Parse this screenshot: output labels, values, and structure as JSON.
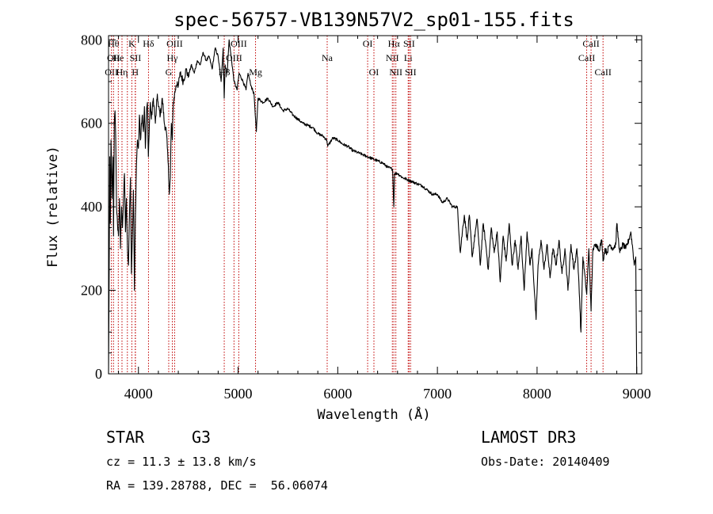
{
  "chart_data": {
    "type": "line",
    "title": "spec-56757-VB139N57V2_sp01-155.fits",
    "xlabel": "Wavelength (Å)",
    "ylabel": "Flux (relative)",
    "xlim": [
      3700,
      9050
    ],
    "ylim": [
      0,
      810
    ],
    "xticks": [
      4000,
      5000,
      6000,
      7000,
      8000,
      9000
    ],
    "yticks": [
      0,
      200,
      400,
      600,
      800
    ],
    "series": [
      {
        "name": "flux",
        "anchors": [
          [
            3700,
            0
          ],
          [
            3705,
            180
          ],
          [
            3712,
            520
          ],
          [
            3718,
            360
          ],
          [
            3725,
            560
          ],
          [
            3735,
            420
          ],
          [
            3745,
            520
          ],
          [
            3750,
            330
          ],
          [
            3758,
            600
          ],
          [
            3765,
            630
          ],
          [
            3772,
            560
          ],
          [
            3780,
            400
          ],
          [
            3790,
            360
          ],
          [
            3800,
            330
          ],
          [
            3810,
            420
          ],
          [
            3820,
            300
          ],
          [
            3830,
            400
          ],
          [
            3840,
            350
          ],
          [
            3850,
            420
          ],
          [
            3860,
            480
          ],
          [
            3870,
            340
          ],
          [
            3880,
            420
          ],
          [
            3890,
            300
          ],
          [
            3900,
            260
          ],
          [
            3910,
            380
          ],
          [
            3920,
            470
          ],
          [
            3930,
            240
          ],
          [
            3940,
            330
          ],
          [
            3950,
            440
          ],
          [
            3960,
            200
          ],
          [
            3970,
            380
          ],
          [
            3980,
            500
          ],
          [
            3990,
            560
          ],
          [
            4000,
            540
          ],
          [
            4010,
            620
          ],
          [
            4020,
            560
          ],
          [
            4030,
            600
          ],
          [
            4040,
            620
          ],
          [
            4050,
            580
          ],
          [
            4060,
            640
          ],
          [
            4070,
            540
          ],
          [
            4080,
            620
          ],
          [
            4090,
            650
          ],
          [
            4100,
            520
          ],
          [
            4110,
            600
          ],
          [
            4120,
            650
          ],
          [
            4130,
            610
          ],
          [
            4150,
            660
          ],
          [
            4170,
            600
          ],
          [
            4190,
            670
          ],
          [
            4200,
            640
          ],
          [
            4220,
            620
          ],
          [
            4240,
            660
          ],
          [
            4260,
            600
          ],
          [
            4280,
            580
          ],
          [
            4300,
            500
          ],
          [
            4310,
            430
          ],
          [
            4320,
            470
          ],
          [
            4330,
            600
          ],
          [
            4340,
            560
          ],
          [
            4350,
            650
          ],
          [
            4370,
            680
          ],
          [
            4390,
            700
          ],
          [
            4400,
            690
          ],
          [
            4420,
            720
          ],
          [
            4450,
            700
          ],
          [
            4480,
            730
          ],
          [
            4500,
            710
          ],
          [
            4530,
            740
          ],
          [
            4560,
            720
          ],
          [
            4590,
            750
          ],
          [
            4620,
            740
          ],
          [
            4650,
            770
          ],
          [
            4680,
            750
          ],
          [
            4710,
            760
          ],
          [
            4740,
            730
          ],
          [
            4770,
            780
          ],
          [
            4800,
            760
          ],
          [
            4830,
            700
          ],
          [
            4850,
            780
          ],
          [
            4861,
            660
          ],
          [
            4870,
            740
          ],
          [
            4890,
            720
          ],
          [
            4910,
            800
          ],
          [
            4930,
            760
          ],
          [
            4960,
            700
          ],
          [
            4990,
            680
          ],
          [
            5010,
            720
          ],
          [
            5050,
            700
          ],
          [
            5080,
            680
          ],
          [
            5100,
            720
          ],
          [
            5130,
            690
          ],
          [
            5160,
            670
          ],
          [
            5172,
            620
          ],
          [
            5183,
            580
          ],
          [
            5200,
            660
          ],
          [
            5250,
            650
          ],
          [
            5300,
            660
          ],
          [
            5350,
            640
          ],
          [
            5400,
            650
          ],
          [
            5450,
            630
          ],
          [
            5500,
            635
          ],
          [
            5550,
            620
          ],
          [
            5600,
            610
          ],
          [
            5650,
            600
          ],
          [
            5700,
            595
          ],
          [
            5750,
            590
          ],
          [
            5800,
            575
          ],
          [
            5850,
            570
          ],
          [
            5890,
            560
          ],
          [
            5900,
            545
          ],
          [
            5950,
            565
          ],
          [
            6000,
            560
          ],
          [
            6050,
            550
          ],
          [
            6100,
            545
          ],
          [
            6150,
            535
          ],
          [
            6200,
            530
          ],
          [
            6250,
            525
          ],
          [
            6300,
            520
          ],
          [
            6350,
            515
          ],
          [
            6400,
            510
          ],
          [
            6450,
            505
          ],
          [
            6500,
            495
          ],
          [
            6550,
            490
          ],
          [
            6563,
            400
          ],
          [
            6570,
            480
          ],
          [
            6600,
            480
          ],
          [
            6650,
            470
          ],
          [
            6700,
            465
          ],
          [
            6750,
            460
          ],
          [
            6800,
            455
          ],
          [
            6850,
            450
          ],
          [
            6900,
            440
          ],
          [
            6950,
            430
          ],
          [
            7000,
            430
          ],
          [
            7050,
            410
          ],
          [
            7100,
            420
          ],
          [
            7150,
            400
          ],
          [
            7200,
            400
          ],
          [
            7230,
            290
          ],
          [
            7250,
            340
          ],
          [
            7270,
            380
          ],
          [
            7300,
            320
          ],
          [
            7320,
            380
          ],
          [
            7350,
            280
          ],
          [
            7380,
            340
          ],
          [
            7400,
            370
          ],
          [
            7430,
            260
          ],
          [
            7460,
            360
          ],
          [
            7490,
            300
          ],
          [
            7510,
            250
          ],
          [
            7540,
            350
          ],
          [
            7570,
            290
          ],
          [
            7600,
            340
          ],
          [
            7630,
            220
          ],
          [
            7660,
            330
          ],
          [
            7690,
            270
          ],
          [
            7720,
            360
          ],
          [
            7750,
            260
          ],
          [
            7780,
            320
          ],
          [
            7810,
            250
          ],
          [
            7840,
            330
          ],
          [
            7870,
            200
          ],
          [
            7900,
            340
          ],
          [
            7930,
            260
          ],
          [
            7950,
            300
          ],
          [
            7970,
            210
          ],
          [
            7990,
            130
          ],
          [
            8010,
            260
          ],
          [
            8040,
            320
          ],
          [
            8070,
            250
          ],
          [
            8100,
            310
          ],
          [
            8130,
            230
          ],
          [
            8160,
            300
          ],
          [
            8190,
            260
          ],
          [
            8220,
            320
          ],
          [
            8250,
            240
          ],
          [
            8280,
            300
          ],
          [
            8310,
            200
          ],
          [
            8340,
            310
          ],
          [
            8370,
            250
          ],
          [
            8400,
            300
          ],
          [
            8420,
            220
          ],
          [
            8440,
            100
          ],
          [
            8460,
            280
          ],
          [
            8498,
            190
          ],
          [
            8520,
            300
          ],
          [
            8542,
            150
          ],
          [
            8560,
            300
          ],
          [
            8600,
            310
          ],
          [
            8620,
            295
          ],
          [
            8650,
            320
          ],
          [
            8662,
            270
          ],
          [
            8680,
            300
          ],
          [
            8700,
            290
          ],
          [
            8730,
            310
          ],
          [
            8760,
            300
          ],
          [
            8790,
            310
          ],
          [
            8800,
            360
          ],
          [
            8830,
            290
          ],
          [
            8860,
            310
          ],
          [
            8890,
            300
          ],
          [
            8920,
            320
          ],
          [
            8940,
            340
          ],
          [
            8960,
            300
          ],
          [
            8975,
            260
          ],
          [
            8990,
            280
          ],
          [
            9000,
            0
          ]
        ]
      }
    ],
    "lines": [
      {
        "w": 3729,
        "labels": [
          {
            "t": "OII",
            "r": 2
          }
        ]
      },
      {
        "w": 3750,
        "labels": [
          {
            "t": "Hθ",
            "r": 0
          },
          {
            "t": "OII",
            "r": 1
          }
        ]
      },
      {
        "w": 3798,
        "labels": [
          {
            "t": "He",
            "r": 1
          }
        ]
      },
      {
        "w": 3835,
        "labels": [
          {
            "t": "Hη",
            "r": 2
          }
        ]
      },
      {
        "w": 3889,
        "labels": []
      },
      {
        "w": 3934,
        "labels": [
          {
            "t": "K",
            "r": 0
          }
        ]
      },
      {
        "w": 3968,
        "labels": [
          {
            "t": "H",
            "r": 2
          }
        ]
      },
      {
        "w": 3970,
        "labels": [
          {
            "t": "SII",
            "r": 1
          }
        ]
      },
      {
        "w": 4101,
        "labels": [
          {
            "t": "Hδ",
            "r": 0
          }
        ]
      },
      {
        "w": 4304,
        "labels": [
          {
            "t": "G",
            "r": 2
          }
        ]
      },
      {
        "w": 4340,
        "labels": [
          {
            "t": "Hγ",
            "r": 1
          }
        ]
      },
      {
        "w": 4363,
        "labels": [
          {
            "t": "OIII",
            "r": 0
          }
        ]
      },
      {
        "w": 4861,
        "labels": [
          {
            "t": "Hβ",
            "r": 2
          }
        ]
      },
      {
        "w": 4959,
        "labels": [
          {
            "t": "OIII",
            "r": 1
          }
        ]
      },
      {
        "w": 5007,
        "labels": [
          {
            "t": "OIII",
            "r": 0
          }
        ]
      },
      {
        "w": 5175,
        "labels": [
          {
            "t": "Mg",
            "r": 2
          }
        ]
      },
      {
        "w": 5894,
        "labels": [
          {
            "t": "Na",
            "r": 1
          }
        ]
      },
      {
        "w": 6300,
        "labels": [
          {
            "t": "OI",
            "r": 0
          }
        ]
      },
      {
        "w": 6363,
        "labels": [
          {
            "t": "OI",
            "r": 2
          }
        ]
      },
      {
        "w": 6548,
        "labels": [
          {
            "t": "NII",
            "r": 1
          }
        ]
      },
      {
        "w": 6563,
        "labels": [
          {
            "t": "Hα",
            "r": 0
          }
        ]
      },
      {
        "w": 6583,
        "labels": [
          {
            "t": "NII",
            "r": 2
          }
        ]
      },
      {
        "w": 6707,
        "labels": [
          {
            "t": "Li",
            "r": 1
          }
        ]
      },
      {
        "w": 6716,
        "labels": [
          {
            "t": "SII",
            "r": 0
          }
        ]
      },
      {
        "w": 6731,
        "labels": [
          {
            "t": "SII",
            "r": 2
          }
        ]
      },
      {
        "w": 8498,
        "labels": [
          {
            "t": "CaII",
            "r": 1
          }
        ]
      },
      {
        "w": 8542,
        "labels": [
          {
            "t": "CaII",
            "r": 0
          }
        ]
      },
      {
        "w": 8662,
        "labels": [
          {
            "t": "CaII",
            "r": 2
          }
        ]
      }
    ]
  },
  "info": {
    "object_class": "STAR",
    "subclass": "G3",
    "survey": "LAMOST DR3",
    "cz": "cz = 11.3 ± 13.8 km/s",
    "obs_date": "Obs-Date: 20140409",
    "coords": "RA = 139.28788, DEC =  56.06074"
  }
}
